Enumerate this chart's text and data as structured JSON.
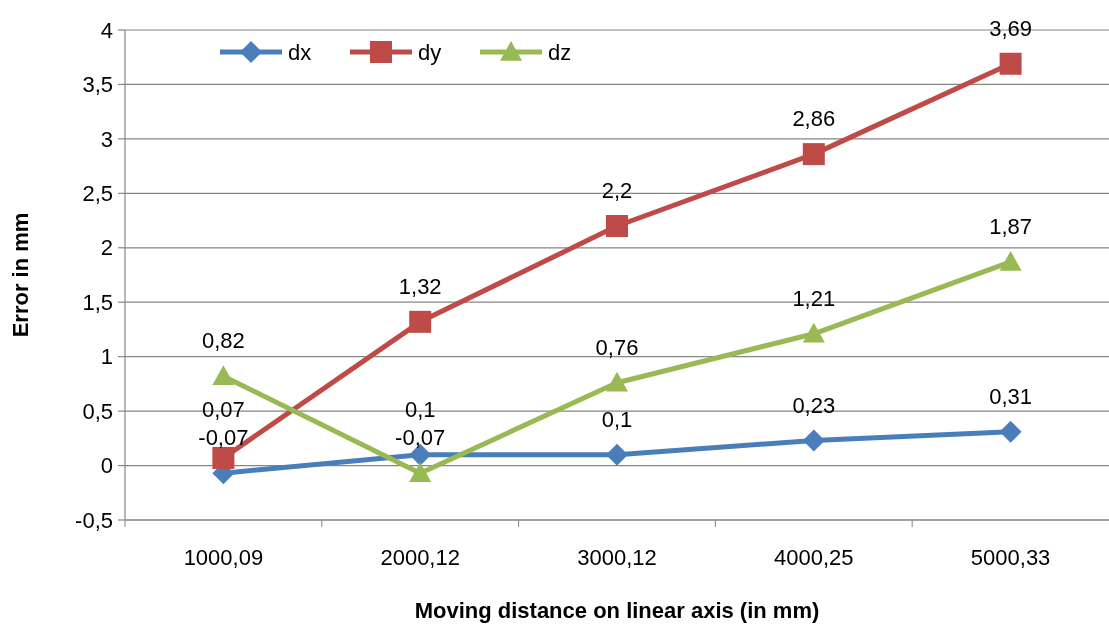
{
  "chart_data": {
    "type": "line",
    "xlabel": "Moving distance on linear axis (in mm)",
    "ylabel": "Error in mm",
    "categories": [
      "1000,09",
      "2000,12",
      "3000,12",
      "4000,25",
      "5000,33"
    ],
    "series": [
      {
        "name": "dx",
        "color": "#4a7ebb",
        "marker": "diamond",
        "values": [
          -0.07,
          0.1,
          0.1,
          0.23,
          0.31
        ],
        "value_labels": [
          "-0,07",
          "0,1",
          "0,1",
          "0,23",
          "0,31"
        ]
      },
      {
        "name": "dy",
        "color": "#be4b48",
        "marker": "square",
        "values": [
          0.07,
          1.32,
          2.2,
          2.86,
          3.69
        ],
        "value_labels": [
          "0,07",
          "1,32",
          "2,2",
          "2,86",
          "3,69"
        ]
      },
      {
        "name": "dz",
        "color": "#98b954",
        "marker": "triangle",
        "values": [
          0.82,
          -0.07,
          0.76,
          1.21,
          1.87
        ],
        "value_labels": [
          "0,82",
          "-0,07",
          "0,76",
          "1,21",
          "1,87"
        ]
      }
    ],
    "ylim": [
      -0.5,
      4
    ],
    "yticks": [
      {
        "value": -0.5,
        "label": "-0,5"
      },
      0,
      {
        "value": 0.5,
        "label": "0,5"
      },
      1,
      {
        "value": 1.5,
        "label": "1,5"
      },
      2,
      {
        "value": 2.5,
        "label": "2,5"
      },
      3,
      {
        "value": 3.5,
        "label": "3,5"
      },
      4
    ],
    "grid": "y",
    "legend": "top left"
  }
}
